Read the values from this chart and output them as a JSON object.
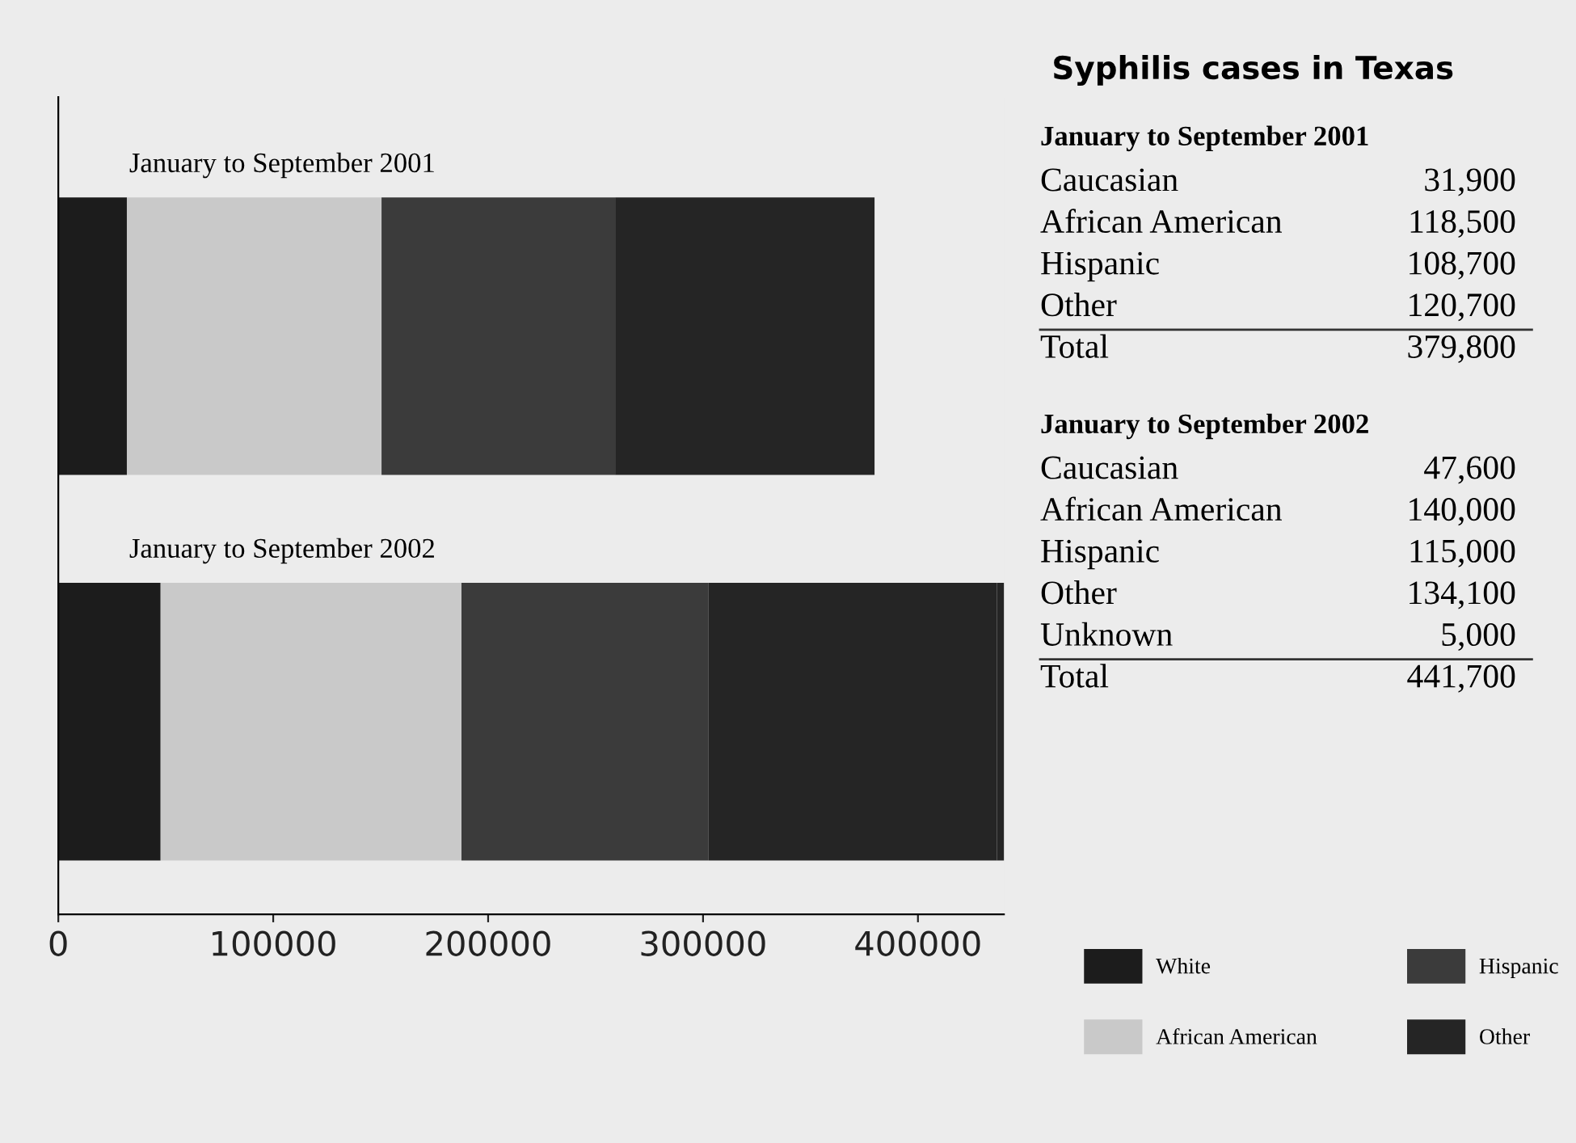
{
  "chart_data": {
    "type": "bar",
    "orientation": "horizontal",
    "stacked": true,
    "title": "Syphilis cases in Texas",
    "categories": [
      "January to September 2001",
      "January to September 2002"
    ],
    "series": [
      {
        "name": "White",
        "color": "#1c1c1c",
        "values": [
          31900,
          47600
        ]
      },
      {
        "name": "African American",
        "color": "#c9c9c9",
        "values": [
          118500,
          140000
        ]
      },
      {
        "name": "Hispanic",
        "color": "#3b3b3b",
        "values": [
          108700,
          115000
        ]
      },
      {
        "name": "Other",
        "color": "#252525",
        "values": [
          120700,
          134100
        ]
      },
      {
        "color": "#252525",
        "values": [
          null,
          5000
        ]
      }
    ],
    "annotations": [
      "Caucasian",
      "31,900",
      "African American",
      "118,500",
      "Hispanic",
      "108,700",
      "Other",
      "120,700",
      "Total",
      "379,800",
      "Caucasian",
      "47,600",
      "African American",
      "140,000",
      "Hispanic",
      "115,000",
      "Other",
      "134,100",
      "Unknown",
      "5,000",
      "Total",
      "441,700"
    ],
    "xlim": [
      0,
      440000
    ],
    "xticks": [
      0,
      100000,
      200000,
      300000,
      400000
    ],
    "grid": false,
    "legend": "bottom right"
  }
}
